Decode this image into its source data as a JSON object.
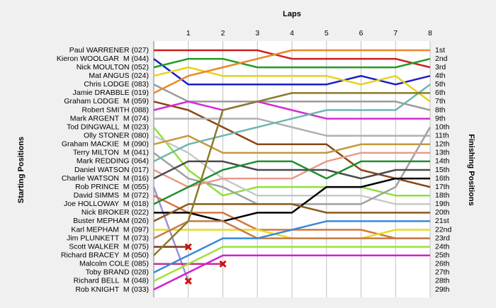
{
  "chart_data": {
    "type": "line",
    "title": "Laps",
    "y_label_left": "Starting Positions",
    "y_label_right": "Finishing Positions",
    "x": [
      0,
      1,
      2,
      3,
      4,
      5,
      6,
      7,
      8
    ],
    "xlim": [
      0,
      8
    ],
    "xticks": [
      1,
      2,
      3,
      4,
      5,
      6,
      7,
      8
    ],
    "ylim": [
      1,
      29
    ],
    "y_inverted": true,
    "grid": true,
    "starting_positions": [
      "Paul WARRENER (027)",
      "Kieron WOOLGAR  M (044)",
      "Nick MOULTON (052)",
      "Mat ANGUS (024)",
      "Chris LODGE (083)",
      "Jamie DRABBLE (019)",
      "Graham LODGE  M (059)",
      "Robert SMITH (088)",
      "Mark ARGENT  M (074)",
      "Tod DINGWALL  M (023)",
      "Olly STONER (080)",
      "Graham MACKIE  M (090)",
      "Terry MILTON  M (041)",
      "Mark REDDING (064)",
      "Daniel WATSON (017)",
      "Charlie WATSON  M (016)",
      "Rob PRINCE  M (055)",
      "David SIMMS  M (072)",
      "Joe HOLLOWAY  M (018)",
      "Nick BROKER (022)",
      "Buster MEPHAM (026)",
      "Karl MEPHAM  M (097)",
      "Jim PLUNKETT  M (073)",
      "Scott WALKER  M (075)",
      "Richard BRACEY  M (050)",
      "Malcolm COLE (085)",
      "Toby BRAND (028)",
      "Richard BELL  M (048)",
      "Rob KNIGHT  M (033)"
    ],
    "finishing_positions": [
      "1st",
      "2nd",
      "3rd",
      "4th",
      "5th",
      "6th",
      "7th",
      "8th",
      "9th",
      "10th",
      "11th",
      "12th",
      "13th",
      "14th",
      "15th",
      "16th",
      "17th",
      "18th",
      "19th",
      "20th",
      "21st",
      "22nd",
      "23rd",
      "24th",
      "25th",
      "26th",
      "27th",
      "28th",
      "29th"
    ],
    "series": [
      {
        "name": "Paul WARRENER",
        "color": "#cc1f1f",
        "values": [
          1,
          1,
          1,
          1,
          2,
          2,
          2,
          2,
          3
        ]
      },
      {
        "name": "Kieron WOOLGAR",
        "color": "#1c1cc8",
        "values": [
          2,
          5,
          5,
          5,
          5,
          5,
          4,
          5,
          4
        ]
      },
      {
        "name": "Nick MOULTON",
        "color": "#239b23",
        "values": [
          3,
          2,
          2,
          3,
          3,
          3,
          3,
          3,
          2
        ]
      },
      {
        "name": "Mat ANGUS",
        "color": "#e6d21e",
        "values": [
          4,
          3,
          4,
          4,
          4,
          4,
          5,
          4,
          7
        ]
      },
      {
        "name": "Chris LODGE",
        "color": "#9a9a9a",
        "values": [
          5,
          7,
          7,
          7,
          7,
          7,
          7,
          7,
          8
        ]
      },
      {
        "name": "Jamie DRABBLE",
        "color": "#e8872a",
        "values": [
          6,
          4,
          3,
          2,
          1,
          1,
          1,
          1,
          1
        ]
      },
      {
        "name": "Graham LODGE",
        "color": "#8b4513",
        "values": [
          7,
          8,
          10,
          12,
          12,
          12,
          15,
          16,
          17
        ]
      },
      {
        "name": "Robert SMITH",
        "color": "#d42cd4",
        "values": [
          8,
          7,
          8,
          7,
          8,
          9,
          9,
          9,
          9
        ]
      },
      {
        "name": "Mark ARGENT",
        "color": "#b0b0b0",
        "values": [
          9,
          9,
          9,
          9,
          10,
          11,
          11,
          11,
          11
        ]
      },
      {
        "name": "Tod DINGWALL",
        "color": "#8ee03a",
        "values": [
          10,
          15,
          18,
          17,
          17,
          17,
          17,
          18,
          18
        ]
      },
      {
        "name": "Olly STONER",
        "color": "#c8c8c8",
        "values": [
          11,
          13,
          16,
          18,
          18,
          18,
          18,
          19,
          19
        ]
      },
      {
        "name": "Graham MACKIE",
        "color": "#c8963c",
        "values": [
          12,
          11,
          13,
          13,
          13,
          13,
          12,
          12,
          12
        ]
      },
      {
        "name": "Terry MILTON",
        "color": "#a0a0a0",
        "values": [
          13,
          16,
          17,
          19,
          19,
          19,
          19,
          17,
          10
        ]
      },
      {
        "name": "Mark REDDING",
        "color": "#6fb5ae",
        "values": [
          14,
          12,
          11,
          10,
          9,
          8,
          8,
          8,
          5
        ]
      },
      {
        "name": "Daniel WATSON",
        "color": "#e89a8a",
        "values": [
          15,
          17,
          16,
          16,
          16,
          14,
          13,
          13,
          13
        ]
      },
      {
        "name": "Charlie WATSON",
        "color": "#4a4a4a",
        "values": [
          16,
          14,
          14,
          15,
          15,
          15,
          16,
          15,
          15
        ]
      },
      {
        "name": "Rob PRINCE",
        "color": "#9c8fd8",
        "values": [
          17,
          28,
          null,
          null,
          null,
          null,
          null,
          null,
          null
        ]
      },
      {
        "name": "David SIMMS",
        "color": "#d9743a",
        "values": [
          18,
          20,
          20,
          22,
          22,
          22,
          22,
          23,
          23
        ]
      },
      {
        "name": "Joe HOLLOWAY",
        "color": "#1f8f2f",
        "values": [
          19,
          17,
          15,
          14,
          14,
          16,
          14,
          14,
          14
        ]
      },
      {
        "name": "Nick BROKER",
        "color": "#000000",
        "values": [
          20,
          20,
          21,
          20,
          20,
          17,
          17,
          16,
          16
        ]
      },
      {
        "name": "Buster MEPHAM",
        "color": "#8a5a1a",
        "values": [
          21,
          19,
          19,
          19,
          19,
          20,
          20,
          20,
          20
        ]
      },
      {
        "name": "Karl MEPHAM",
        "color": "#e6dc1e",
        "values": [
          22,
          22,
          22,
          22,
          23,
          23,
          23,
          22,
          22
        ]
      },
      {
        "name": "Jim PLUNKETT",
        "color": "#c47a4a",
        "values": [
          23,
          21,
          21,
          23,
          23,
          23,
          23,
          23,
          23
        ]
      },
      {
        "name": "Scott WALKER",
        "color": "#7a3a1a",
        "values": [
          24,
          24,
          null,
          null,
          null,
          null,
          null,
          null,
          null
        ]
      },
      {
        "name": "Richard BRACEY",
        "color": "#8a7a2a",
        "values": [
          25,
          21,
          8,
          7,
          6,
          6,
          6,
          6,
          6
        ]
      },
      {
        "name": "Malcolm COLE",
        "color": "#c03090",
        "values": [
          26,
          26,
          26,
          null,
          null,
          null,
          null,
          null,
          null
        ]
      },
      {
        "name": "Toby BRAND",
        "color": "#3a8ad8",
        "values": [
          27,
          25,
          23,
          23,
          22,
          21,
          21,
          21,
          21
        ]
      },
      {
        "name": "Richard BELL",
        "color": "#9ee03a",
        "values": [
          28,
          26,
          24,
          24,
          24,
          24,
          24,
          24,
          24
        ]
      },
      {
        "name": "Rob KNIGHT",
        "color": "#d020d0",
        "values": [
          29,
          27,
          25,
          25,
          25,
          25,
          25,
          25,
          25
        ]
      }
    ]
  }
}
